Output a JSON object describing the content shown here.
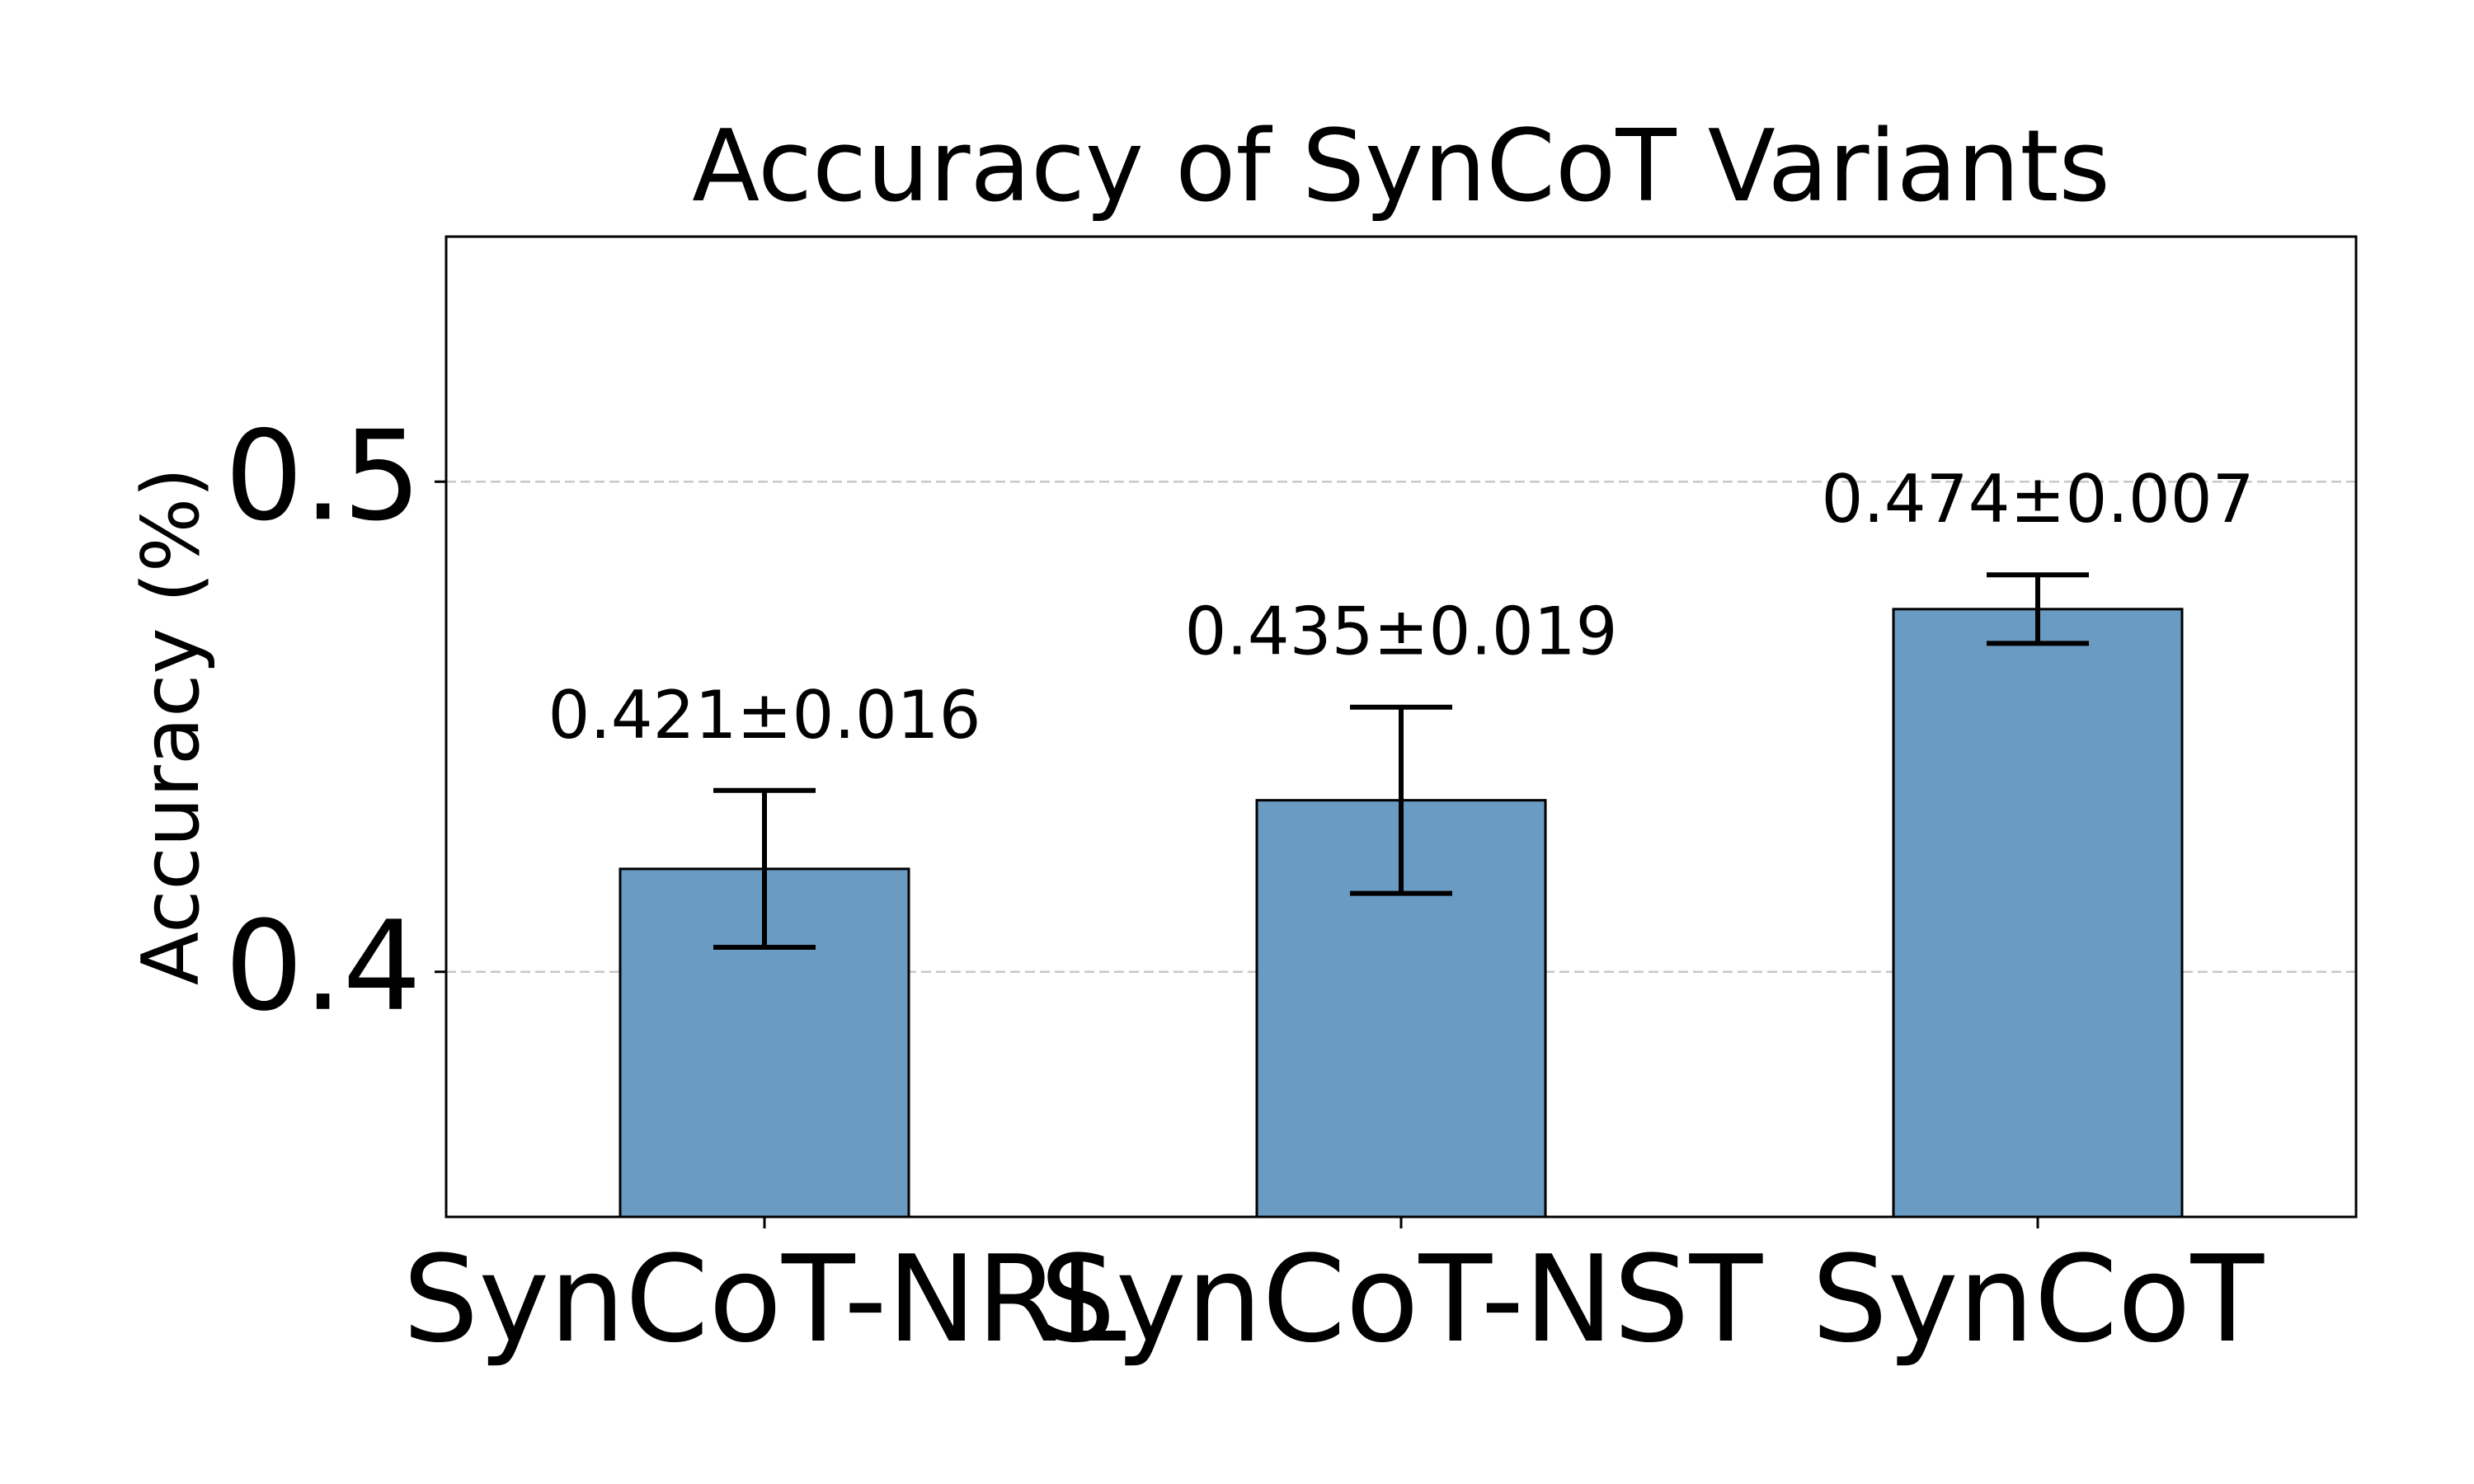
{
  "chart_data": {
    "type": "bar",
    "title": "Accuracy of SynCoT Variants",
    "xlabel": "",
    "ylabel": "Accuracy (%)",
    "categories": [
      "SynCoT-NRL",
      "SynCoT-NST",
      "SynCoT"
    ],
    "values": [
      0.421,
      0.435,
      0.474
    ],
    "errors": [
      0.016,
      0.019,
      0.007
    ],
    "value_labels": [
      "0.421±0.016",
      "0.435±0.019",
      "0.474±0.007"
    ],
    "ylim": [
      0.35,
      0.55
    ],
    "yticks": [
      0.4,
      0.5
    ],
    "ytick_labels": [
      "0.4",
      "0.5"
    ],
    "grid": "y-dashed",
    "bar_color": "#6a9bc3",
    "edge_color": "#000000",
    "grid_color": "#c8c8c8"
  }
}
